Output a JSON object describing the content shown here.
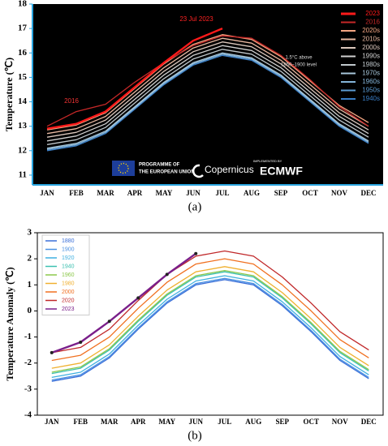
{
  "chart_data": [
    {
      "type": "line",
      "y_label": "Temperature (℃)",
      "categories": [
        "JAN",
        "FEB",
        "MAR",
        "APR",
        "MAY",
        "JUN",
        "JUL",
        "AUG",
        "SEP",
        "OCT",
        "NOV",
        "DEC"
      ],
      "ylim": [
        10.6,
        18
      ],
      "yticks": [
        11,
        12,
        13,
        14,
        15,
        16,
        17,
        18
      ],
      "annotations": [
        "2016",
        "23 Jul 2023",
        "1.5°C above",
        "1850–1900 level"
      ],
      "logos": [
        "PROGRAMME OF",
        "THE EUROPEAN UNION",
        "Copernicus",
        "IMPLEMENTED BY",
        "ECMWF"
      ],
      "series": [
        {
          "name": "2023",
          "color": "#ff1a1a",
          "values": [
            12.9,
            13.1,
            13.6,
            14.6,
            15.6,
            16.5,
            17.0,
            null,
            null,
            null,
            null,
            null
          ]
        },
        {
          "name": "2016",
          "color": "#c62828",
          "values": [
            13.0,
            13.6,
            13.9,
            14.8,
            15.6,
            16.3,
            16.7,
            16.6,
            15.9,
            14.9,
            13.8,
            13.0
          ]
        },
        {
          "name": "2020s",
          "color": "#f4a582",
          "values": [
            12.85,
            13.05,
            13.55,
            14.55,
            15.55,
            16.35,
            16.75,
            16.55,
            15.85,
            14.85,
            13.85,
            13.15
          ]
        },
        {
          "name": "2010s",
          "color": "#e9b8a0",
          "values": [
            12.7,
            12.9,
            13.4,
            14.4,
            15.4,
            16.2,
            16.6,
            16.4,
            15.7,
            14.7,
            13.7,
            13.0
          ]
        },
        {
          "name": "2000s",
          "color": "#dcc8bd",
          "values": [
            12.55,
            12.75,
            13.25,
            14.25,
            15.25,
            16.05,
            16.45,
            16.25,
            15.55,
            14.55,
            13.55,
            12.85
          ]
        },
        {
          "name": "1990s",
          "color": "#d0d0d0",
          "values": [
            12.4,
            12.6,
            13.1,
            14.1,
            15.1,
            15.9,
            16.3,
            16.1,
            15.4,
            14.4,
            13.4,
            12.7
          ]
        },
        {
          "name": "1980s",
          "color": "#c0c8cc",
          "values": [
            12.25,
            12.45,
            12.95,
            13.95,
            14.95,
            15.75,
            16.15,
            15.95,
            15.25,
            14.25,
            13.25,
            12.55
          ]
        },
        {
          "name": "1970s",
          "color": "#a8c8dc",
          "values": [
            12.1,
            12.3,
            12.8,
            13.8,
            14.8,
            15.6,
            16.0,
            15.8,
            15.1,
            14.1,
            13.1,
            12.4
          ]
        },
        {
          "name": "1960s",
          "color": "#84b4d8",
          "values": [
            12.05,
            12.25,
            12.75,
            13.75,
            14.75,
            15.55,
            15.95,
            15.75,
            15.05,
            14.05,
            13.05,
            12.35
          ]
        },
        {
          "name": "1950s",
          "color": "#5c9bd2",
          "values": [
            12.05,
            12.25,
            12.75,
            13.75,
            14.75,
            15.55,
            15.95,
            15.75,
            15.05,
            14.05,
            13.05,
            12.35
          ]
        },
        {
          "name": "1940s",
          "color": "#3a7ec6",
          "values": [
            12.0,
            12.2,
            12.7,
            13.7,
            14.7,
            15.5,
            15.9,
            15.7,
            15.0,
            14.0,
            13.0,
            12.3
          ]
        }
      ]
    },
    {
      "type": "line",
      "y_label": "Temperature Anomaly (℃)",
      "categories": [
        "JAN",
        "FEB",
        "MAR",
        "APR",
        "MAY",
        "JUN",
        "JUL",
        "AUG",
        "SEP",
        "OCT",
        "NOV",
        "DEC"
      ],
      "ylim": [
        -4,
        3
      ],
      "yticks": [
        -4,
        -3,
        -2,
        -1,
        0,
        1,
        2,
        3
      ],
      "series": [
        {
          "name": "1880",
          "color": "#3b6fd8",
          "values": [
            -2.7,
            -2.5,
            -1.8,
            -0.7,
            0.3,
            1.0,
            1.2,
            1.0,
            0.2,
            -0.8,
            -1.9,
            -2.6
          ]
        },
        {
          "name": "1900",
          "color": "#4a90e2",
          "values": [
            -2.65,
            -2.45,
            -1.75,
            -0.65,
            0.35,
            1.05,
            1.25,
            1.05,
            0.25,
            -0.75,
            -1.85,
            -2.55
          ]
        },
        {
          "name": "1920",
          "color": "#3fb0e0",
          "values": [
            -2.55,
            -2.35,
            -1.65,
            -0.55,
            0.45,
            1.15,
            1.35,
            1.15,
            0.35,
            -0.65,
            -1.75,
            -2.45
          ]
        },
        {
          "name": "1940",
          "color": "#3cc0b0",
          "values": [
            -2.4,
            -2.2,
            -1.5,
            -0.4,
            0.6,
            1.3,
            1.5,
            1.3,
            0.5,
            -0.5,
            -1.6,
            -2.3
          ]
        },
        {
          "name": "1960",
          "color": "#8cc84b",
          "values": [
            -2.35,
            -2.15,
            -1.45,
            -0.35,
            0.65,
            1.35,
            1.55,
            1.35,
            0.55,
            -0.45,
            -1.55,
            -2.25
          ]
        },
        {
          "name": "1980",
          "color": "#f0b030",
          "values": [
            -2.2,
            -2.0,
            -1.3,
            -0.2,
            0.8,
            1.5,
            1.7,
            1.5,
            0.7,
            -0.3,
            -1.4,
            -2.1
          ]
        },
        {
          "name": "2000",
          "color": "#f07020",
          "values": [
            -1.9,
            -1.7,
            -1.0,
            0.1,
            1.1,
            1.8,
            2.0,
            1.8,
            1.0,
            0.0,
            -1.1,
            -1.8
          ]
        },
        {
          "name": "2020",
          "color": "#c0282a",
          "values": [
            -1.6,
            -1.4,
            -0.7,
            0.4,
            1.4,
            2.1,
            2.3,
            2.1,
            1.3,
            0.3,
            -0.8,
            -1.5
          ]
        },
        {
          "name": "2023",
          "color": "#7a1f8a",
          "values": [
            -1.6,
            -1.2,
            -0.4,
            0.5,
            1.4,
            2.2,
            null,
            null,
            null,
            null,
            null,
            null
          ]
        }
      ]
    }
  ],
  "captions": [
    "(a)",
    "(b)"
  ]
}
